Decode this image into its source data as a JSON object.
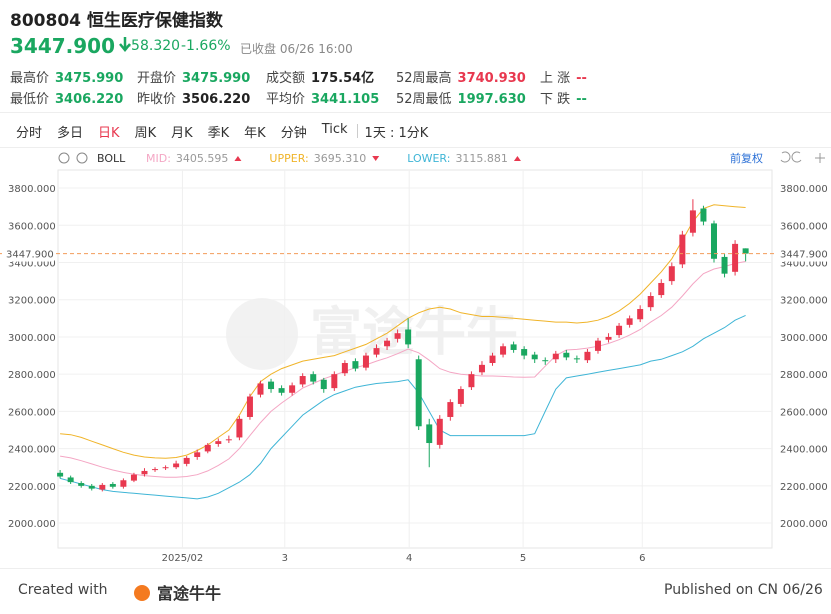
{
  "header": {
    "code_name": "800804 恒生医疗保健指数",
    "price": "3447.900",
    "change": "-58.320",
    "change_pct": "-1.66%",
    "status": "已收盘 06/26 16:00"
  },
  "stats": [
    {
      "label": "最高价",
      "value": "3475.990",
      "color": "#1aa760"
    },
    {
      "label": "开盘价",
      "value": "3475.990",
      "color": "#1aa760"
    },
    {
      "label": "成交额",
      "value": "175.54亿",
      "color": "#222"
    },
    {
      "label": "52周最高",
      "value": "3740.930",
      "color": "#e8384f"
    },
    {
      "label": "上 涨",
      "value": "--",
      "color": "#e8384f"
    },
    {
      "label": "最低价",
      "value": "3406.220",
      "color": "#1aa760"
    },
    {
      "label": "昨收价",
      "value": "3506.220",
      "color": "#222"
    },
    {
      "label": "平均价",
      "value": "3441.105",
      "color": "#1aa760"
    },
    {
      "label": "52周最低",
      "value": "1997.630",
      "color": "#1aa760"
    },
    {
      "label": "下 跌",
      "value": "--",
      "color": "#1aa760"
    }
  ],
  "tabs": [
    "分时",
    "多日",
    "日K",
    "周K",
    "月K",
    "季K",
    "年K",
    "分钟",
    "Tick"
  ],
  "active_tab": 2,
  "period": "1天 : 1分K",
  "footer": {
    "created": "Created with",
    "brand": "富途牛牛",
    "published": "Published on CN 06/26"
  },
  "chart_data": {
    "type": "candlestick",
    "watermark": "富途牛牛",
    "indicator": "BOLL",
    "adjust": "前复权",
    "up_color": "#e8384f",
    "down_color": "#1aa760",
    "ylim": [
      1866,
      3897
    ],
    "xlim": [
      -0.2,
      67.5
    ],
    "yticks": [
      {
        "value": 2000,
        "label": "2000.000"
      },
      {
        "value": 2200,
        "label": "2200.000"
      },
      {
        "value": 2400,
        "label": "2400.000"
      },
      {
        "value": 2600,
        "label": "2600.000"
      },
      {
        "value": 2800,
        "label": "2800.000"
      },
      {
        "value": 3000,
        "label": "3000.000"
      },
      {
        "value": 3200,
        "label": "3200.000"
      },
      {
        "value": 3400,
        "label": "3400.000"
      },
      {
        "value": 3600,
        "label": "3600.000"
      },
      {
        "value": 3800,
        "label": "3800.000"
      }
    ],
    "xticks": [
      {
        "value": 11.6,
        "label": "2025/02"
      },
      {
        "value": 21.3,
        "label": "3"
      },
      {
        "value": 33.1,
        "label": "4"
      },
      {
        "value": 43.9,
        "label": "5"
      },
      {
        "value": 55.2,
        "label": "6"
      }
    ],
    "grid": true,
    "price_line": {
      "value": 3447.9,
      "label": "3447.900",
      "color": "#f39c5a"
    },
    "open": [
      2270,
      2245,
      2215,
      2200,
      2180,
      2210,
      2195,
      2228,
      2262,
      2285,
      2295,
      2300,
      2318,
      2355,
      2385,
      2425,
      2445,
      2460,
      2570,
      2690,
      2760,
      2725,
      2700,
      2745,
      2800,
      2770,
      2725,
      2805,
      2870,
      2835,
      2905,
      2950,
      2990,
      3040,
      2880,
      2530,
      2420,
      2570,
      2640,
      2730,
      2810,
      2860,
      2905,
      2960,
      2935,
      2905,
      2875,
      2880,
      2915,
      2885,
      2875,
      2925,
      2985,
      3010,
      3065,
      3095,
      3160,
      3225,
      3300,
      3390,
      3560,
      3690,
      3610,
      3430,
      3350,
      3475.99
    ],
    "high": [
      2285,
      2255,
      2225,
      2210,
      2215,
      2220,
      2240,
      2270,
      2295,
      2300,
      2310,
      2335,
      2360,
      2395,
      2430,
      2455,
      2470,
      2575,
      2695,
      2765,
      2775,
      2740,
      2755,
      2805,
      2815,
      2780,
      2815,
      2875,
      2885,
      2915,
      2960,
      2995,
      3040,
      3100,
      2900,
      2560,
      2580,
      2665,
      2735,
      2815,
      2870,
      2915,
      2965,
      2975,
      2950,
      2920,
      2890,
      2925,
      2930,
      2900,
      2935,
      2995,
      3020,
      3075,
      3115,
      3170,
      3240,
      3310,
      3400,
      3570,
      3740,
      3705,
      3625,
      3445,
      3520,
      3475.99
    ],
    "low": [
      2240,
      2210,
      2190,
      2175,
      2170,
      2185,
      2185,
      2220,
      2250,
      2275,
      2285,
      2290,
      2305,
      2340,
      2375,
      2410,
      2430,
      2445,
      2555,
      2675,
      2700,
      2685,
      2685,
      2730,
      2745,
      2700,
      2710,
      2790,
      2815,
      2820,
      2890,
      2930,
      2970,
      2940,
      2500,
      2300,
      2400,
      2550,
      2625,
      2715,
      2795,
      2845,
      2890,
      2915,
      2880,
      2860,
      2850,
      2860,
      2875,
      2860,
      2860,
      2910,
      2970,
      2995,
      3050,
      3080,
      3140,
      3210,
      3280,
      3370,
      3540,
      3600,
      3400,
      3320,
      3330,
      3406.22
    ],
    "close": [
      2250,
      2220,
      2200,
      2185,
      2205,
      2195,
      2230,
      2260,
      2280,
      2290,
      2300,
      2320,
      2350,
      2380,
      2420,
      2440,
      2450,
      2560,
      2680,
      2750,
      2720,
      2700,
      2740,
      2790,
      2760,
      2720,
      2800,
      2860,
      2830,
      2900,
      2940,
      2980,
      3020,
      2960,
      2520,
      2430,
      2560,
      2650,
      2720,
      2800,
      2850,
      2900,
      2950,
      2930,
      2900,
      2880,
      2870,
      2910,
      2890,
      2880,
      2920,
      2980,
      3000,
      3060,
      3100,
      3150,
      3220,
      3290,
      3380,
      3550,
      3680,
      3620,
      3420,
      3340,
      3500,
      3447.9
    ],
    "bands": [
      {
        "label": "MID:",
        "last_label": "3405.595",
        "color": "#f4a6c4",
        "values": [
          2360,
          2350,
          2335,
          2318,
          2300,
          2285,
          2272,
          2262,
          2255,
          2250,
          2246,
          2246,
          2250,
          2260,
          2280,
          2310,
          2345,
          2400,
          2470,
          2540,
          2600,
          2645,
          2685,
          2725,
          2750,
          2775,
          2795,
          2815,
          2835,
          2850,
          2870,
          2888,
          2910,
          2935,
          2915,
          2875,
          2830,
          2810,
          2800,
          2795,
          2790,
          2790,
          2788,
          2785,
          2783,
          2785,
          2843,
          2900,
          2930,
          2933,
          2940,
          2950,
          2965,
          2985,
          3010,
          3040,
          3080,
          3115,
          3160,
          3220,
          3285,
          3340,
          3365,
          3378,
          3395,
          3405.595
        ]
      },
      {
        "label": "UPPER:",
        "last_label": "3695.310",
        "color": "#f0b429",
        "values": [
          2480,
          2475,
          2460,
          2440,
          2420,
          2400,
          2380,
          2365,
          2355,
          2350,
          2348,
          2352,
          2365,
          2390,
          2420,
          2460,
          2500,
          2580,
          2680,
          2760,
          2800,
          2830,
          2850,
          2870,
          2880,
          2890,
          2900,
          2920,
          2940,
          2960,
          2990,
          3020,
          3060,
          3100,
          3130,
          3150,
          3160,
          3150,
          3130,
          3120,
          3110,
          3110,
          3105,
          3100,
          3095,
          3090,
          3085,
          3080,
          3080,
          3075,
          3080,
          3090,
          3110,
          3140,
          3180,
          3230,
          3290,
          3350,
          3420,
          3520,
          3620,
          3690,
          3710,
          3705,
          3700,
          3695.31
        ]
      },
      {
        "label": "LOWER:",
        "last_label": "3115.881",
        "color": "#3fb5d6",
        "values": [
          2240,
          2225,
          2210,
          2195,
          2180,
          2170,
          2165,
          2160,
          2155,
          2150,
          2145,
          2140,
          2135,
          2130,
          2140,
          2160,
          2190,
          2220,
          2260,
          2320,
          2400,
          2460,
          2520,
          2580,
          2620,
          2660,
          2690,
          2710,
          2730,
          2740,
          2750,
          2755,
          2760,
          2770,
          2700,
          2600,
          2500,
          2470,
          2470,
          2470,
          2470,
          2470,
          2470,
          2470,
          2470,
          2480,
          2600,
          2720,
          2780,
          2790,
          2800,
          2810,
          2820,
          2830,
          2840,
          2850,
          2870,
          2880,
          2900,
          2920,
          2950,
          2990,
          3020,
          3050,
          3090,
          3115.881
        ]
      }
    ]
  }
}
